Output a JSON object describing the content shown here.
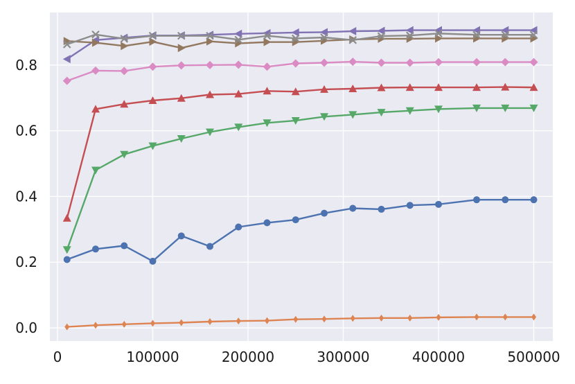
{
  "chart_data": {
    "type": "line",
    "title": "",
    "xlabel": "",
    "ylabel": "",
    "xlim": [
      -8000,
      520000
    ],
    "ylim": [
      -0.04,
      0.96
    ],
    "xticks": [
      0,
      100000,
      200000,
      300000,
      400000,
      500000
    ],
    "xtick_labels": [
      "0",
      "100000",
      "200000",
      "300000",
      "400000",
      "500000"
    ],
    "yticks": [
      0.0,
      0.2,
      0.4,
      0.6,
      0.8
    ],
    "ytick_labels": [
      "0.0",
      "0.2",
      "0.4",
      "0.6",
      "0.8"
    ],
    "grid": true,
    "legend": "none",
    "background_color": "#eaeaf2",
    "x": [
      10000,
      40000,
      70000,
      100000,
      130000,
      160000,
      190000,
      220000,
      250000,
      280000,
      310000,
      340000,
      370000,
      400000,
      440000,
      470000,
      500000
    ],
    "series": [
      {
        "color": "#4c72b0",
        "marker": "circle",
        "values": [
          0.208,
          0.24,
          0.25,
          0.203,
          0.28,
          0.248,
          0.307,
          0.32,
          0.329,
          0.349,
          0.364,
          0.361,
          0.373,
          0.376,
          0.39,
          0.39,
          0.39
        ]
      },
      {
        "color": "#dd8452",
        "marker": "thin-diamond",
        "values": [
          0.003,
          0.008,
          0.011,
          0.014,
          0.016,
          0.019,
          0.021,
          0.022,
          0.026,
          0.027,
          0.029,
          0.03,
          0.03,
          0.032,
          0.033,
          0.033,
          0.033
        ]
      },
      {
        "color": "#55a868",
        "marker": "triangle-down",
        "values": [
          0.238,
          0.48,
          0.528,
          0.554,
          0.576,
          0.596,
          0.611,
          0.624,
          0.631,
          0.643,
          0.649,
          0.656,
          0.661,
          0.666,
          0.669,
          0.669,
          0.669
        ]
      },
      {
        "color": "#c44e52",
        "marker": "triangle-up",
        "values": [
          0.334,
          0.666,
          0.681,
          0.692,
          0.699,
          0.71,
          0.712,
          0.721,
          0.719,
          0.726,
          0.728,
          0.731,
          0.732,
          0.732,
          0.732,
          0.733,
          0.732
        ]
      },
      {
        "color": "#8172b3",
        "marker": "triangle-left",
        "values": [
          0.818,
          0.876,
          0.883,
          0.89,
          0.89,
          0.892,
          0.895,
          0.897,
          0.899,
          0.9,
          0.903,
          0.904,
          0.906,
          0.906,
          0.906,
          0.906,
          0.906
        ]
      },
      {
        "color": "#937860",
        "marker": "triangle-right",
        "values": [
          0.873,
          0.868,
          0.858,
          0.871,
          0.852,
          0.872,
          0.866,
          0.87,
          0.87,
          0.874,
          0.878,
          0.88,
          0.88,
          0.881,
          0.881,
          0.881,
          0.881
        ]
      },
      {
        "color": "#da8bc3",
        "marker": "diamond",
        "values": [
          0.752,
          0.783,
          0.782,
          0.795,
          0.799,
          0.8,
          0.801,
          0.795,
          0.805,
          0.807,
          0.81,
          0.807,
          0.807,
          0.809,
          0.809,
          0.809,
          0.809
        ]
      },
      {
        "color": "#8c8c8c",
        "marker": "x",
        "values": [
          0.863,
          0.893,
          0.88,
          0.889,
          0.889,
          0.889,
          0.877,
          0.889,
          0.881,
          0.884,
          0.876,
          0.888,
          0.89,
          0.896,
          0.892,
          0.892,
          0.892
        ]
      }
    ]
  }
}
